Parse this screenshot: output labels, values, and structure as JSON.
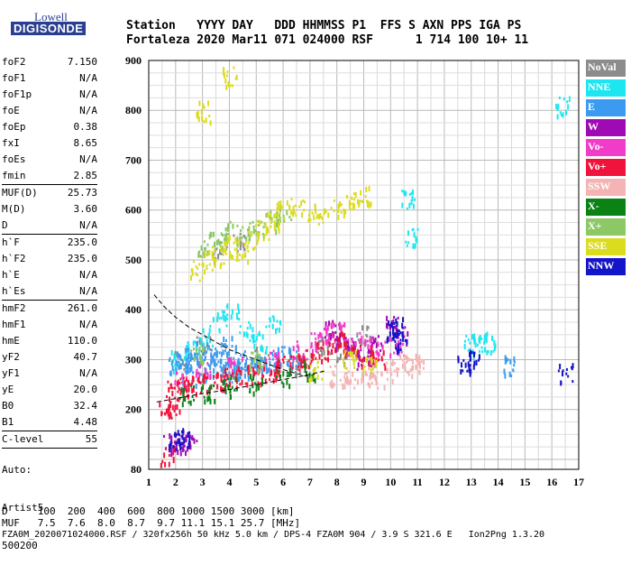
{
  "logo": {
    "top": "Lowell",
    "bottom": "DIGISONDE"
  },
  "header": {
    "line1": "Station   YYYY DAY   DDD HHMMSS P1  FFS S AXN PPS IGA PS",
    "line2": "Fortaleza 2020 Mar11 071 024000 RSF      1 714 100 10+ 11"
  },
  "params": [
    {
      "label": "foF2",
      "value": "7.150"
    },
    {
      "label": "foF1",
      "value": "N/A"
    },
    {
      "label": "foF1p",
      "value": "N/A"
    },
    {
      "label": "foE",
      "value": "N/A"
    },
    {
      "label": "foEp",
      "value": "0.38"
    },
    {
      "label": "fxI",
      "value": "8.65"
    },
    {
      "label": "foEs",
      "value": "N/A"
    },
    {
      "label": "fmin",
      "value": "2.85"
    },
    {
      "label": "MUF(D)",
      "value": "25.73",
      "sep": true
    },
    {
      "label": "M(D)",
      "value": "3.60"
    },
    {
      "label": "D",
      "value": "N/A"
    },
    {
      "label": "h`F",
      "value": "235.0",
      "sep": true
    },
    {
      "label": "h`F2",
      "value": "235.0"
    },
    {
      "label": "h`E",
      "value": "N/A"
    },
    {
      "label": "h`Es",
      "value": "N/A"
    },
    {
      "label": "hmF2",
      "value": "261.0",
      "sep": true
    },
    {
      "label": "hmF1",
      "value": "N/A"
    },
    {
      "label": "hmE",
      "value": "110.0"
    },
    {
      "label": "yF2",
      "value": "40.7"
    },
    {
      "label": "yF1",
      "value": "N/A"
    },
    {
      "label": "yE",
      "value": "20.0"
    },
    {
      "label": "B0",
      "value": "32.4"
    },
    {
      "label": "B1",
      "value": "4.48"
    },
    {
      "label": "C-level",
      "value": "55",
      "sep": true
    }
  ],
  "auto": {
    "line1": "Auto:",
    "line2": "Artist5",
    "line3": "500200"
  },
  "legend": [
    {
      "label": "NoVal",
      "color": "#8c8c8c"
    },
    {
      "label": "NNE",
      "color": "#1ee6f0"
    },
    {
      "label": "E",
      "color": "#3c9bf0"
    },
    {
      "label": "W",
      "color": "#a00ab4"
    },
    {
      "label": "Vo-",
      "color": "#f03cc8"
    },
    {
      "label": "Vo+",
      "color": "#f0143c"
    },
    {
      "label": "SSW",
      "color": "#f5b4b4"
    },
    {
      "label": "X-",
      "color": "#0a8214"
    },
    {
      "label": "X+",
      "color": "#8cc864"
    },
    {
      "label": "SSE",
      "color": "#dcdc1e"
    },
    {
      "label": "NNW",
      "color": "#1414c8"
    }
  ],
  "bottom": {
    "d_row": "D     100  200  400  600  800 1000 1500 3000 [km]",
    "muf_row": "MUF   7.5  7.6  8.0  8.7  9.7 11.1 15.1 25.7 [MHz]",
    "footer": "FZA0M_2020071024000.RSF / 320fx256h 50 kHz 5.0 km / DPS-4 FZA0M 904 / 3.9 S 321.6 E   Ion2Png 1.3.20"
  },
  "chart_data": {
    "type": "scatter",
    "xlim": [
      1,
      17
    ],
    "ylim": [
      80,
      900
    ],
    "xticks": [
      "1",
      "2",
      "3",
      "4",
      "5",
      "6",
      "7",
      "8",
      "9",
      "10",
      "11",
      "12",
      "13",
      "14",
      "15",
      "16",
      "17"
    ],
    "yticks": [
      "80",
      "200",
      "300",
      "400",
      "500",
      "600",
      "700",
      "800",
      "900"
    ],
    "grid": true,
    "xlabel": "",
    "ylabel": "",
    "clusters": [
      {
        "name": "NoVal",
        "color": "#8c8c8c",
        "points": [
          [
            2.2,
            300
          ],
          [
            3.0,
            330
          ],
          [
            4.0,
            280
          ],
          [
            5.2,
            310
          ],
          [
            6.5,
            290
          ],
          [
            7.5,
            330
          ],
          [
            8.2,
            310
          ],
          [
            9.0,
            350
          ],
          [
            3.6,
            520
          ],
          [
            4.4,
            540
          ]
        ]
      },
      {
        "name": "NNE",
        "color": "#1ee6f0",
        "points": [
          [
            2.1,
            300
          ],
          [
            2.6,
            330
          ],
          [
            3.1,
            350
          ],
          [
            3.6,
            380
          ],
          [
            4.1,
            400
          ],
          [
            4.6,
            360
          ],
          [
            5.1,
            340
          ],
          [
            5.6,
            380
          ],
          [
            13.0,
            335
          ],
          [
            13.3,
            330
          ],
          [
            13.6,
            338
          ],
          [
            16.4,
            810
          ],
          [
            10.6,
            625
          ],
          [
            10.8,
            545
          ]
        ]
      },
      {
        "name": "E",
        "color": "#3c9bf0",
        "points": [
          [
            2.0,
            290
          ],
          [
            2.3,
            305
          ],
          [
            2.6,
            310
          ],
          [
            2.9,
            320
          ],
          [
            3.2,
            300
          ],
          [
            3.5,
            315
          ],
          [
            3.8,
            330
          ],
          [
            4.1,
            310
          ],
          [
            4.4,
            300
          ],
          [
            4.8,
            290
          ],
          [
            5.2,
            295
          ],
          [
            5.6,
            300
          ],
          [
            6.0,
            310
          ],
          [
            6.4,
            305
          ],
          [
            2.5,
            270
          ],
          [
            3.0,
            280
          ],
          [
            3.5,
            290
          ],
          [
            4.0,
            275
          ],
          [
            4.5,
            285
          ],
          [
            14.4,
            290
          ]
        ]
      },
      {
        "name": "W",
        "color": "#a00ab4",
        "points": [
          [
            1.8,
            130
          ],
          [
            2.0,
            135
          ],
          [
            2.2,
            140
          ],
          [
            2.5,
            130
          ],
          [
            7.8,
            360
          ],
          [
            8.2,
            340
          ],
          [
            8.6,
            320
          ],
          [
            9.0,
            300
          ],
          [
            9.4,
            330
          ],
          [
            10.0,
            370
          ],
          [
            10.4,
            350
          ]
        ]
      },
      {
        "name": "Vo-",
        "color": "#f03cc8",
        "points": [
          [
            2.2,
            260
          ],
          [
            3.0,
            280
          ],
          [
            4.2,
            290
          ],
          [
            5.6,
            300
          ],
          [
            6.6,
            320
          ],
          [
            7.2,
            340
          ],
          [
            7.6,
            350
          ],
          [
            8.0,
            360
          ],
          [
            8.5,
            330
          ],
          [
            9.0,
            340
          ],
          [
            9.5,
            320
          ],
          [
            10.2,
            330
          ]
        ]
      },
      {
        "name": "Vo+",
        "color": "#f0143c",
        "points": [
          [
            1.9,
            240
          ],
          [
            2.2,
            245
          ],
          [
            2.5,
            250
          ],
          [
            3.0,
            255
          ],
          [
            3.5,
            260
          ],
          [
            4.0,
            265
          ],
          [
            4.5,
            270
          ],
          [
            5.0,
            275
          ],
          [
            5.5,
            280
          ],
          [
            6.0,
            290
          ],
          [
            6.5,
            300
          ],
          [
            7.0,
            305
          ],
          [
            7.5,
            320
          ],
          [
            8.0,
            340
          ],
          [
            8.5,
            330
          ],
          [
            9.0,
            310
          ],
          [
            9.5,
            300
          ],
          [
            1.6,
            205
          ],
          [
            1.9,
            205
          ],
          [
            1.7,
            110
          ]
        ]
      },
      {
        "name": "SSW",
        "color": "#f5b4b4",
        "points": [
          [
            8.0,
            270
          ],
          [
            8.5,
            265
          ],
          [
            9.0,
            270
          ],
          [
            9.5,
            260
          ],
          [
            10.0,
            280
          ],
          [
            10.5,
            290
          ],
          [
            10.9,
            300
          ],
          [
            11.0,
            290
          ]
        ]
      },
      {
        "name": "X-",
        "color": "#0a8214",
        "points": [
          [
            2.4,
            230
          ],
          [
            3.2,
            240
          ],
          [
            4.0,
            250
          ],
          [
            5.0,
            255
          ],
          [
            6.0,
            270
          ],
          [
            7.0,
            280
          ]
        ]
      },
      {
        "name": "X+",
        "color": "#8cc864",
        "points": [
          [
            3.0,
            520
          ],
          [
            3.5,
            540
          ],
          [
            4.0,
            560
          ],
          [
            4.5,
            550
          ],
          [
            5.0,
            570
          ],
          [
            5.5,
            580
          ],
          [
            6.0,
            590
          ],
          [
            2.8,
            310
          ],
          [
            5.0,
            300
          ]
        ]
      },
      {
        "name": "SSE",
        "color": "#dcdc1e",
        "points": [
          [
            2.8,
            480
          ],
          [
            3.2,
            500
          ],
          [
            3.6,
            510
          ],
          [
            4.0,
            530
          ],
          [
            4.4,
            520
          ],
          [
            4.8,
            540
          ],
          [
            5.2,
            560
          ],
          [
            5.6,
            580
          ],
          [
            6.0,
            600
          ],
          [
            6.5,
            610
          ],
          [
            7.0,
            600
          ],
          [
            7.5,
            590
          ],
          [
            8.0,
            610
          ],
          [
            8.5,
            620
          ],
          [
            9.0,
            630
          ],
          [
            7.2,
            280
          ],
          [
            8.4,
            300
          ],
          [
            9.2,
            290
          ],
          [
            3.0,
            800
          ],
          [
            4.0,
            870
          ]
        ]
      },
      {
        "name": "NNW",
        "color": "#1414c8",
        "points": [
          [
            2.0,
            140
          ],
          [
            2.3,
            145
          ],
          [
            10.0,
            360
          ],
          [
            10.2,
            370
          ],
          [
            10.4,
            340
          ],
          [
            12.7,
            295
          ],
          [
            13.0,
            300
          ],
          [
            16.5,
            275
          ]
        ]
      }
    ],
    "traces": [
      {
        "name": "dashed-upper",
        "style": "dashed",
        "points": [
          [
            1.2,
            430
          ],
          [
            1.6,
            405
          ],
          [
            2.0,
            385
          ],
          [
            2.5,
            365
          ],
          [
            3.0,
            350
          ],
          [
            3.5,
            335
          ],
          [
            4.0,
            320
          ],
          [
            4.5,
            310
          ],
          [
            5.0,
            300
          ],
          [
            5.5,
            290
          ],
          [
            6.0,
            280
          ],
          [
            6.5,
            272
          ],
          [
            7.0,
            265
          ]
        ]
      },
      {
        "name": "dashed-lower",
        "style": "dashed",
        "points": [
          [
            1.3,
            215
          ],
          [
            2.0,
            222
          ],
          [
            3.0,
            232
          ],
          [
            4.0,
            240
          ],
          [
            5.0,
            250
          ],
          [
            6.0,
            260
          ],
          [
            7.0,
            270
          ],
          [
            7.6,
            278
          ]
        ]
      }
    ]
  }
}
